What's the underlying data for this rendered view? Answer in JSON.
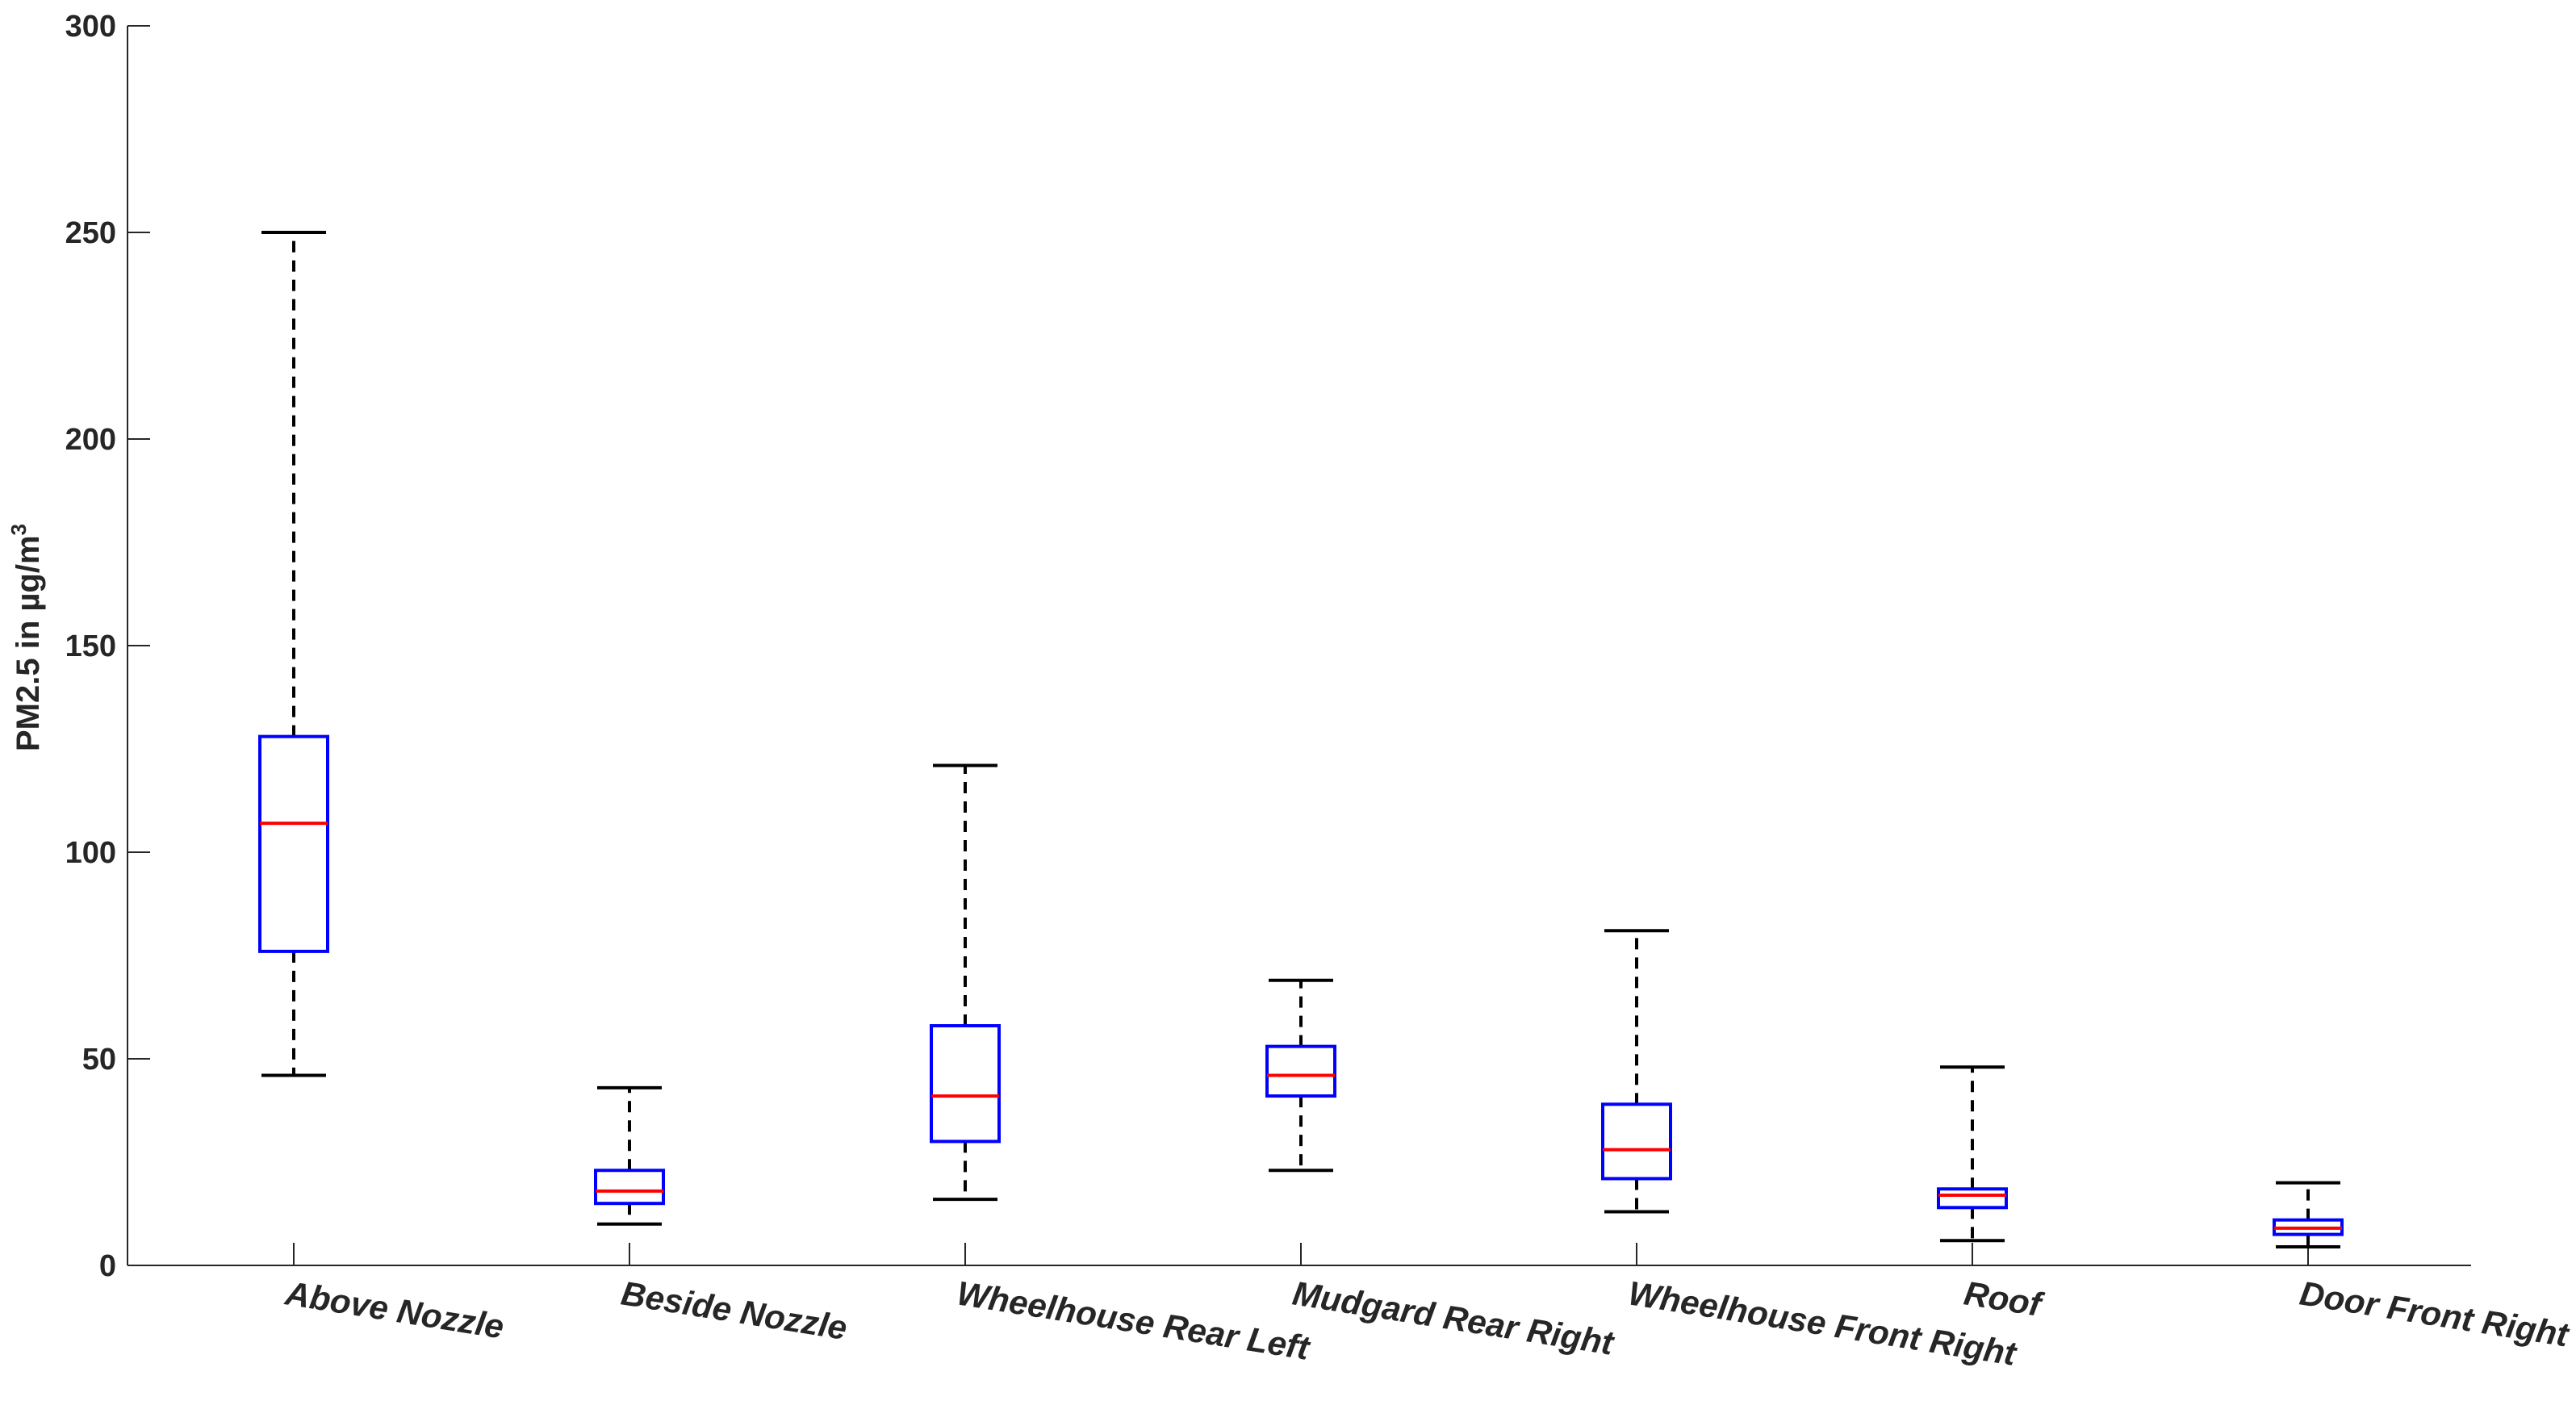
{
  "chart_data": {
    "type": "box",
    "title": "",
    "xlabel": "",
    "ylabel_main": "PM2.5 in µg/m",
    "ylabel_superscript": "3",
    "ylim": [
      0,
      300
    ],
    "yticks": [
      0,
      50,
      100,
      150,
      200,
      250,
      300
    ],
    "categories": [
      "Above Nozzle",
      "Beside Nozzle",
      "Wheelhouse Rear Left",
      "Mudgard Rear Right",
      "Wheelhouse Front Right",
      "Roof",
      "Door Front Right"
    ],
    "boxes": [
      {
        "whisker_low": 46,
        "q1": 76,
        "median": 107,
        "q3": 128,
        "whisker_high": 250
      },
      {
        "whisker_low": 10,
        "q1": 15,
        "median": 18,
        "q3": 23,
        "whisker_high": 43
      },
      {
        "whisker_low": 16,
        "q1": 30,
        "median": 41,
        "q3": 58,
        "whisker_high": 121
      },
      {
        "whisker_low": 23,
        "q1": 41,
        "median": 46,
        "q3": 53,
        "whisker_high": 69
      },
      {
        "whisker_low": 13,
        "q1": 21,
        "median": 28,
        "q3": 39,
        "whisker_high": 81
      },
      {
        "whisker_low": 6,
        "q1": 14,
        "median": 17,
        "q3": 18.5,
        "whisker_high": 48
      },
      {
        "whisker_low": 4.5,
        "q1": 7.5,
        "median": 9,
        "q3": 11,
        "whisker_high": 20
      }
    ],
    "colors": {
      "box": "#0000ff",
      "median": "#ff0000",
      "whisker": "#000000",
      "axis": "#262626"
    }
  }
}
